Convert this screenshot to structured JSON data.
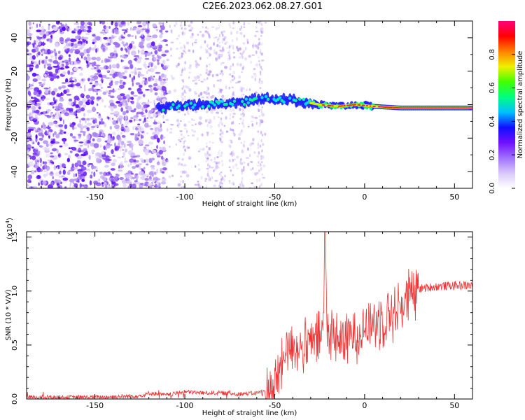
{
  "title": "C2E6.2023.062.08.27.G01",
  "chart_data": [
    {
      "type": "heatmap",
      "xlabel": "Height of straight line (km)",
      "ylabel": "Frequency (Hz)",
      "xlim": [
        -188,
        60
      ],
      "ylim": [
        -50,
        50
      ],
      "xticks": [
        -150,
        -100,
        -50,
        0,
        50
      ],
      "yticks": [
        -40,
        -20,
        0,
        20,
        40
      ],
      "colorbar": {
        "label": "Normalized spectral amplitude",
        "range": [
          0.0,
          1.0
        ],
        "ticks": [
          "0.0",
          "0.2",
          "0.4",
          "0.6",
          "0.8"
        ],
        "colors": [
          "#ffffff",
          "#d8c8f8",
          "#a070ff",
          "#7010ff",
          "#1010ff",
          "#00c0ff",
          "#00ff80",
          "#40ff00",
          "#f0f000",
          "#ff8000",
          "#ff0000",
          "#ff0080"
        ]
      },
      "ridge": {
        "x": [
          -110,
          -90,
          -70,
          -55,
          -45,
          -35,
          -25,
          -15,
          -5,
          5,
          20,
          35,
          60
        ],
        "frequency": [
          -1,
          0,
          1,
          4,
          3,
          2,
          0,
          -1,
          0,
          -1,
          -2,
          -2,
          -2
        ],
        "amplitude": [
          0.25,
          0.3,
          0.35,
          0.45,
          0.5,
          0.55,
          0.75,
          0.85,
          0.9,
          0.92,
          0.95,
          0.95,
          0.95
        ]
      }
    },
    {
      "type": "line",
      "xlabel": "Height of straight line (km)",
      "ylabel": "SNR (10 * V/V)",
      "yscale_label": "(x10",
      "yscale_exp": "4",
      "yscale_close": ")",
      "xlim": [
        -188,
        60
      ],
      "ylim": [
        0.0,
        1.55
      ],
      "xticks": [
        -150,
        -100,
        -50,
        0,
        50
      ],
      "yticks": [
        "0.0",
        "0.5",
        "1.0",
        "1.5"
      ],
      "color": "#ee3333",
      "series": [
        {
          "x": [
            -188,
            -170,
            -150,
            -130,
            -122,
            -120,
            -110,
            -100,
            -90,
            -80,
            -70,
            -60,
            -55,
            -50,
            -46,
            -44,
            -40,
            -35,
            -30,
            -25,
            -23,
            -22,
            -21,
            -20,
            -15,
            -10,
            -5,
            0,
            5,
            10,
            15,
            20,
            25,
            30,
            40,
            50,
            60
          ],
          "y": [
            0.02,
            0.02,
            0.02,
            0.03,
            0.04,
            0.06,
            0.04,
            0.07,
            0.06,
            0.06,
            0.05,
            0.06,
            0.08,
            0.15,
            0.35,
            0.5,
            0.55,
            0.5,
            0.55,
            0.6,
            0.7,
            1.55,
            0.75,
            0.65,
            0.6,
            0.6,
            0.65,
            0.7,
            0.75,
            0.8,
            0.85,
            0.9,
            0.98,
            1.03,
            1.05,
            1.06,
            1.06
          ]
        }
      ]
    }
  ]
}
